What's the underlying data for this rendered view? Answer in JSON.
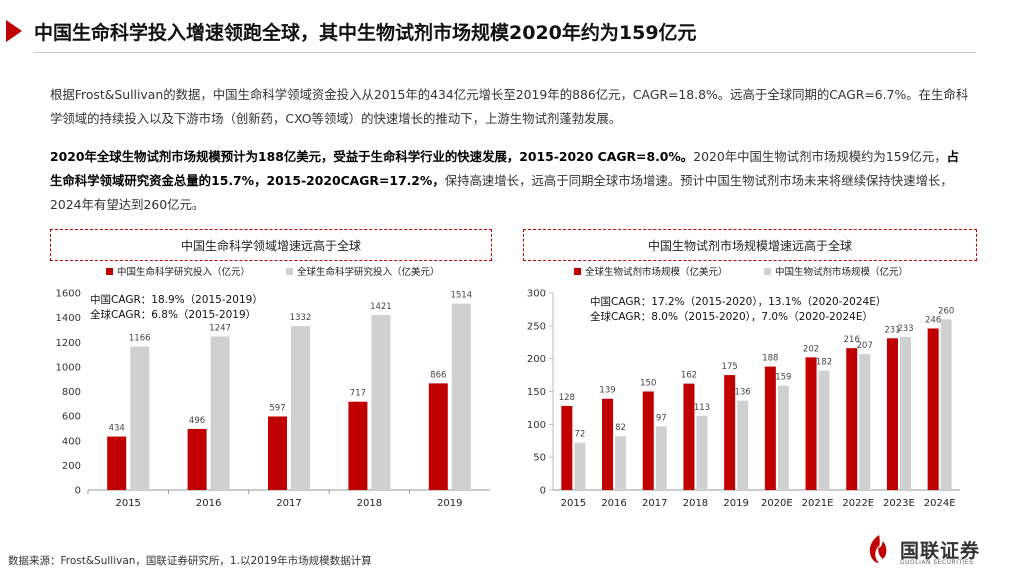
{
  "title": "中国生命科学投入增速领跑全球，其中生物试剂市场规模2020年约为159亿元",
  "paragraph1": "根据Frost&Sullivan的数据，中国生命科学领域资金投入从2015年的434亿元增长至2019年的886亿元，CAGR=18.8%。远高于全球同期的CAGR=6.7%。在生命科学领域的持续投入以及下游市场（创新药，CXO等领域）的快速增长的推动下，上游生物试剂蓬勃发展。",
  "paragraph2": {
    "bold1": "2020年全球生物试剂市场规模预计为188亿美元，受益于生命科学行业的快速发展，2015-2020 CAGR=8.0%。",
    "text1": "2020年中国生物试剂市场规模约为159亿元，",
    "bold2": "占生命科学领域研究资金总量的15.7%，2015-2020CAGR=17.2%，",
    "text2": "保持高速增长，远高于同期全球市场增速。预计中国生物试剂市场未来将继续保持快速增长，2024年有望达到260亿元。"
  },
  "footer": "数据来源：Frost&Sullivan，国联证券研究所，1.以2019年市场规模数据计算",
  "logo": {
    "cn": "国联证券",
    "en": "GUOLIAN SECURITIES"
  },
  "colors": {
    "red": "#c00000",
    "gray": "#d0d0d0"
  },
  "chart_data": [
    {
      "type": "bar",
      "title": "中国生命科学领域增速远高于全球",
      "categories": [
        "2015",
        "2016",
        "2017",
        "2018",
        "2019"
      ],
      "series": [
        {
          "name": "中国生命科学研究投入（亿元）",
          "values": [
            434,
            496,
            597,
            717,
            866
          ]
        },
        {
          "name": "全球生命科学研究投入（亿美元）",
          "values": [
            1166,
            1247,
            1332,
            1421,
            1514
          ]
        }
      ],
      "ylim": [
        0,
        1600
      ],
      "yticks": [
        0,
        200,
        400,
        600,
        800,
        1000,
        1200,
        1400,
        1600
      ],
      "annotations": [
        "中国CAGR：18.9%（2015-2019）",
        "全球CAGR：6.8%（2015-2019）"
      ],
      "legend": "top"
    },
    {
      "type": "bar",
      "title": "中国生物试剂市场规模增速远高于全球",
      "categories": [
        "2015",
        "2016",
        "2017",
        "2018",
        "2019",
        "2020E",
        "2021E",
        "2022E",
        "2023E",
        "2024E"
      ],
      "series": [
        {
          "name": "全球生物试剂市场规模（亿美元）",
          "values": [
            128,
            139,
            150,
            162,
            175,
            188,
            202,
            216,
            231,
            246
          ]
        },
        {
          "name": "中国生物试剂市场规模（亿元）",
          "values": [
            72,
            82,
            97,
            113,
            136,
            159,
            182,
            207,
            233,
            260
          ]
        }
      ],
      "ylim": [
        0,
        300
      ],
      "yticks": [
        0,
        50,
        100,
        150,
        200,
        250,
        300
      ],
      "annotations": [
        "中国CAGR：17.2%（2015-2020），13.1%（2020-2024E）",
        "全球CAGR：8.0%（2015-2020），7.0%（2020-2024E）"
      ],
      "legend": "top"
    }
  ]
}
